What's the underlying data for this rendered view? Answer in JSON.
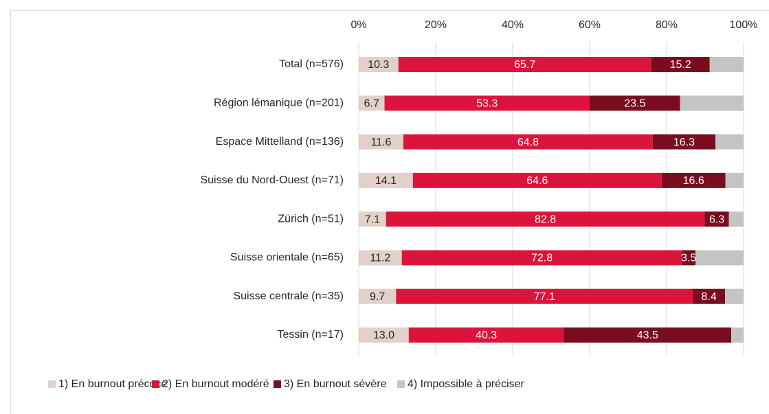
{
  "chart_data": {
    "type": "stacked-bar-horizontal",
    "categories": [
      "Total (n=576)",
      "Région lémanique (n=201)",
      "Espace Mittelland (n=136)",
      "Suisse du Nord-Ouest (n=71)",
      "Zürich (n=51)",
      "Suisse orientale (n=65)",
      "Suisse centrale (n=35)",
      "Tessin (n=17)"
    ],
    "series": [
      {
        "name": "1) En burnout précoce",
        "color": "#e2d0ca",
        "text_color": "#262626",
        "values": [
          10.3,
          6.7,
          11.6,
          14.1,
          7.1,
          11.2,
          9.7,
          13.0
        ],
        "value_labels": [
          "10.3",
          "6.7",
          "11.6",
          "14.1",
          "7.1",
          "11.2",
          "9.7",
          "13.0"
        ]
      },
      {
        "name": "2) En burnout modéré",
        "color": "#dc143c",
        "text_color": "#ffffff",
        "values": [
          65.7,
          53.3,
          64.8,
          64.6,
          82.8,
          72.8,
          77.1,
          40.3
        ],
        "value_labels": [
          "65.7",
          "53.3",
          "64.8",
          "64.6",
          "82.8",
          "72.8",
          "77.1",
          "40.3"
        ]
      },
      {
        "name": "3) En burnout sévère",
        "color": "#7a0c20",
        "text_color": "#ffffff",
        "values": [
          15.2,
          23.5,
          16.3,
          16.6,
          6.3,
          3.5,
          8.4,
          43.5
        ],
        "value_labels": [
          "15.2",
          "23.5",
          "16.3",
          "16.6",
          "6.3",
          "3.5",
          "8.4",
          "43.5"
        ]
      },
      {
        "name": "4) Impossible à préciser",
        "color": "#c4c4c4",
        "values": [
          8.8,
          16.5,
          7.3,
          4.7,
          3.8,
          12.5,
          4.8,
          3.2
        ]
      }
    ],
    "xlim": [
      0,
      100
    ],
    "xticks": [
      {
        "value": 0,
        "label": "0%"
      },
      {
        "value": 20,
        "label": "20%"
      },
      {
        "value": 40,
        "label": "40%"
      },
      {
        "value": 60,
        "label": "60%"
      },
      {
        "value": 80,
        "label": "80%"
      },
      {
        "value": 100,
        "label": "100%"
      }
    ],
    "grid": true,
    "legend": "bottom"
  }
}
